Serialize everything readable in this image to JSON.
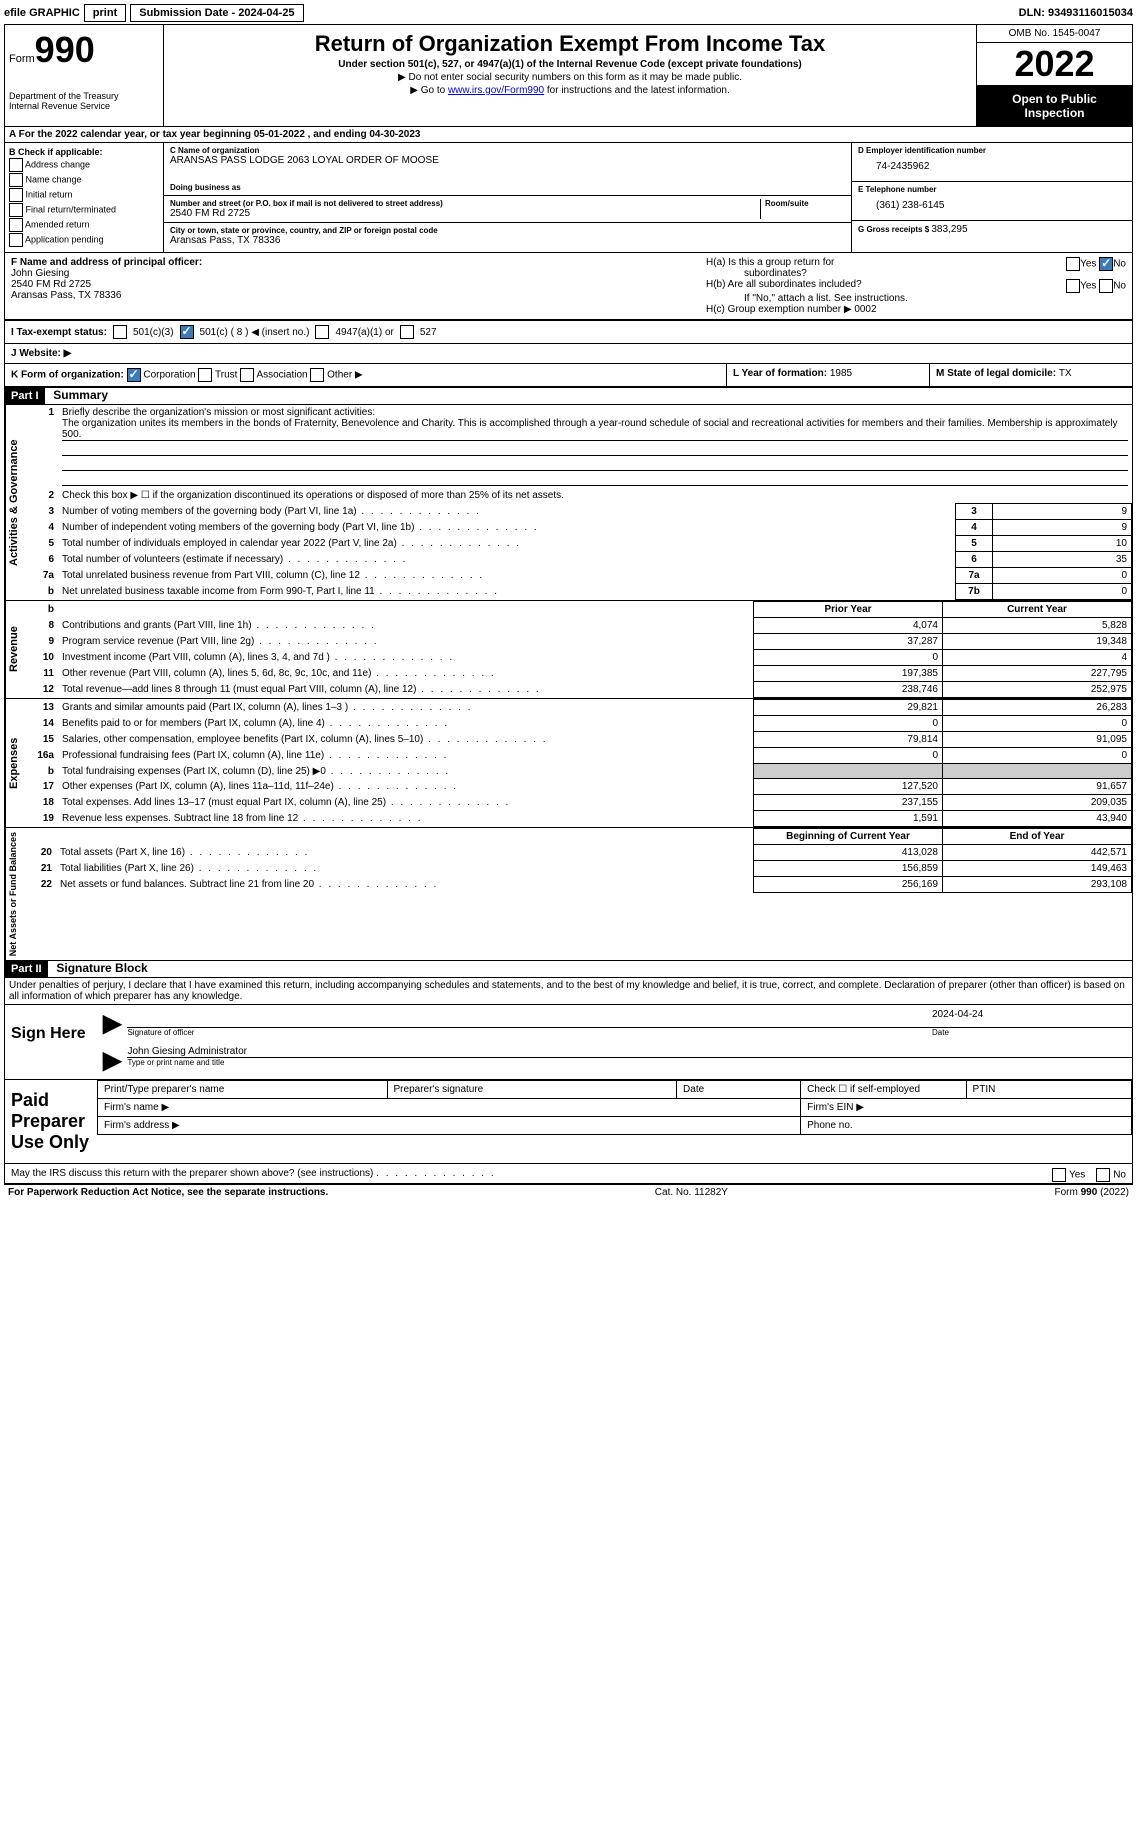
{
  "topbar": {
    "efile": "efile GRAPHIC",
    "print": "print",
    "submission_label": "Submission Date - ",
    "submission_date": "2024-04-25",
    "dln_label": "DLN: ",
    "dln": "93493116015034"
  },
  "header": {
    "form_word": "Form",
    "form_num": "990",
    "dept": "Department of the Treasury",
    "irs": "Internal Revenue Service",
    "title": "Return of Organization Exempt From Income Tax",
    "sub": "Under section 501(c), 527, or 4947(a)(1) of the Internal Revenue Code (except private foundations)",
    "note1": "▶ Do not enter social security numbers on this form as it may be made public.",
    "note2_pre": "▶ Go to ",
    "note2_link": "www.irs.gov/Form990",
    "note2_post": " for instructions and the latest information.",
    "omb": "OMB No. 1545-0047",
    "year": "2022",
    "open": "Open to Public Inspection"
  },
  "sec_a": {
    "text_pre": "A For the 2022 calendar year, or tax year beginning ",
    "begin": "05-01-2022",
    "mid": "    , and ending ",
    "end": "04-30-2023"
  },
  "col_b": {
    "header": "B Check if applicable:",
    "items": [
      "Address change",
      "Name change",
      "Initial return",
      "Final return/terminated",
      "Amended return",
      "Application pending"
    ]
  },
  "org": {
    "c_lbl": "C Name of organization",
    "name": "ARANSAS PASS LODGE 2063 LOYAL ORDER OF MOOSE",
    "dba_lbl": "Doing business as",
    "dba": "",
    "addr_lbl": "Number and street (or P.O. box if mail is not delivered to street address)",
    "room_lbl": "Room/suite",
    "addr": "2540 FM Rd 2725",
    "city_lbl": "City or town, state or province, country, and ZIP or foreign postal code",
    "city": "Aransas Pass, TX   78336"
  },
  "col_d": {
    "ein_lbl": "D Employer identification number",
    "ein": "74-2435962",
    "tel_lbl": "E Telephone number",
    "tel": "(361) 238-6145",
    "gross_lbl": "G Gross receipts $ ",
    "gross": "383,295"
  },
  "sec_f": {
    "lbl": "F Name and address of principal officer:",
    "name": "John Giesing",
    "addr1": "2540 FM Rd 2725",
    "addr2": "Aransas Pass, TX   78336"
  },
  "sec_h": {
    "ha": "H(a)   Is this a group return for",
    "ha2": "subordinates?",
    "hb": "H(b)   Are all subordinates included?",
    "hb_note": "If \"No,\" attach a list. See instructions.",
    "hc": "H(c)   Group exemption number ▶  ",
    "hc_val": "0002",
    "yes": "Yes",
    "no": "No"
  },
  "sec_i": {
    "lbl": "I    Tax-exempt status:",
    "o1": "501(c)(3)",
    "o2": "501(c) ( 8 ) ◀ (insert no.)",
    "o3": "4947(a)(1) or",
    "o4": "527"
  },
  "sec_j": {
    "lbl": "J    Website: ▶"
  },
  "sec_k": {
    "lbl": "K Form of organization:",
    "o1": "Corporation",
    "o2": "Trust",
    "o3": "Association",
    "o4": "Other ▶"
  },
  "sec_l": {
    "lbl": "L Year of formation: ",
    "val": "1985"
  },
  "sec_m": {
    "lbl": "M State of legal domicile: ",
    "val": "TX"
  },
  "parts": {
    "p1": "Part I",
    "p1t": "Summary",
    "p2": "Part II",
    "p2t": "Signature Block"
  },
  "summary": {
    "q1": "Briefly describe the organization's mission or most significant activities:",
    "q1a": "The organization unites its members in the bonds of Fraternity, Benevolence and Charity. This is accomplished through a year-round schedule of social and recreational activities for members and their families. Membership is approximately 500.",
    "q2": "Check this box ▶ ☐  if the organization discontinued its operations or disposed of more than 25% of its net assets.",
    "rows_ag": [
      {
        "n": "3",
        "t": "Number of voting members of the governing body (Part VI, line 1a)",
        "box": "3",
        "v": "9"
      },
      {
        "n": "4",
        "t": "Number of independent voting members of the governing body (Part VI, line 1b)",
        "box": "4",
        "v": "9"
      },
      {
        "n": "5",
        "t": "Total number of individuals employed in calendar year 2022 (Part V, line 2a)",
        "box": "5",
        "v": "10"
      },
      {
        "n": "6",
        "t": "Total number of volunteers (estimate if necessary)",
        "box": "6",
        "v": "35"
      },
      {
        "n": "7a",
        "t": "Total unrelated business revenue from Part VIII, column (C), line 12",
        "box": "7a",
        "v": "0"
      },
      {
        "n": "b",
        "t": "Net unrelated business taxable income from Form 990-T, Part I, line 11",
        "box": "7b",
        "v": "0"
      }
    ],
    "prior_hdr": "Prior Year",
    "curr_hdr": "Current Year",
    "rows_rev": [
      {
        "n": "8",
        "t": "Contributions and grants (Part VIII, line 1h)",
        "p": "4,074",
        "c": "5,828"
      },
      {
        "n": "9",
        "t": "Program service revenue (Part VIII, line 2g)",
        "p": "37,287",
        "c": "19,348"
      },
      {
        "n": "10",
        "t": "Investment income (Part VIII, column (A), lines 3, 4, and 7d )",
        "p": "0",
        "c": "4"
      },
      {
        "n": "11",
        "t": "Other revenue (Part VIII, column (A), lines 5, 6d, 8c, 9c, 10c, and 11e)",
        "p": "197,385",
        "c": "227,795"
      },
      {
        "n": "12",
        "t": "Total revenue—add lines 8 through 11 (must equal Part VIII, column (A), line 12)",
        "p": "238,746",
        "c": "252,975"
      }
    ],
    "rows_exp": [
      {
        "n": "13",
        "t": "Grants and similar amounts paid (Part IX, column (A), lines 1–3 )",
        "p": "29,821",
        "c": "26,283"
      },
      {
        "n": "14",
        "t": "Benefits paid to or for members (Part IX, column (A), line 4)",
        "p": "0",
        "c": "0"
      },
      {
        "n": "15",
        "t": "Salaries, other compensation, employee benefits (Part IX, column (A), lines 5–10)",
        "p": "79,814",
        "c": "91,095"
      },
      {
        "n": "16a",
        "t": "Professional fundraising fees (Part IX, column (A), line 11e)",
        "p": "0",
        "c": "0"
      },
      {
        "n": "b",
        "t": "Total fundraising expenses (Part IX, column (D), line 25) ▶0",
        "p": "",
        "c": "",
        "shade": true
      },
      {
        "n": "17",
        "t": "Other expenses (Part IX, column (A), lines 11a–11d, 11f–24e)",
        "p": "127,520",
        "c": "91,657"
      },
      {
        "n": "18",
        "t": "Total expenses. Add lines 13–17 (must equal Part IX, column (A), line 25)",
        "p": "237,155",
        "c": "209,035"
      },
      {
        "n": "19",
        "t": "Revenue less expenses. Subtract line 18 from line 12",
        "p": "1,591",
        "c": "43,940"
      }
    ],
    "beg_hdr": "Beginning of Current Year",
    "end_hdr": "End of Year",
    "rows_na": [
      {
        "n": "20",
        "t": "Total assets (Part X, line 16)",
        "p": "413,028",
        "c": "442,571"
      },
      {
        "n": "21",
        "t": "Total liabilities (Part X, line 26)",
        "p": "156,859",
        "c": "149,463"
      },
      {
        "n": "22",
        "t": "Net assets or fund balances. Subtract line 21 from line 20",
        "p": "256,169",
        "c": "293,108"
      }
    ]
  },
  "tabs": {
    "ag": "Activities & Governance",
    "rev": "Revenue",
    "exp": "Expenses",
    "na": "Net Assets or Fund Balances"
  },
  "sig": {
    "penalty": "Under penalties of perjury, I declare that I have examined this return, including accompanying schedules and statements, and to the best of my knowledge and belief, it is true, correct, and complete. Declaration of preparer (other than officer) is based on all information of which preparer has any knowledge.",
    "sign_here": "Sign Here",
    "sig_officer": "Signature of officer",
    "date": "Date",
    "date_val": "2024-04-24",
    "name": "John Giesing  Administrator",
    "name_lbl": "Type or print name and title",
    "paid": "Paid Preparer Use Only",
    "pname": "Print/Type preparer's name",
    "psig": "Preparer's signature",
    "pdate": "Date",
    "pcheck": "Check ☐  if self-employed",
    "ptin": "PTIN",
    "firm_name": "Firm's name    ▶",
    "firm_ein": "Firm's EIN ▶",
    "firm_addr": "Firm's address ▶",
    "phone": "Phone no."
  },
  "footer": {
    "q": "May the IRS discuss this return with the preparer shown above? (see instructions)",
    "yes": "Yes",
    "no": "No",
    "pra": "For Paperwork Reduction Act Notice, see the separate instructions.",
    "cat": "Cat. No. 11282Y",
    "form": "Form 990 (2022)"
  }
}
